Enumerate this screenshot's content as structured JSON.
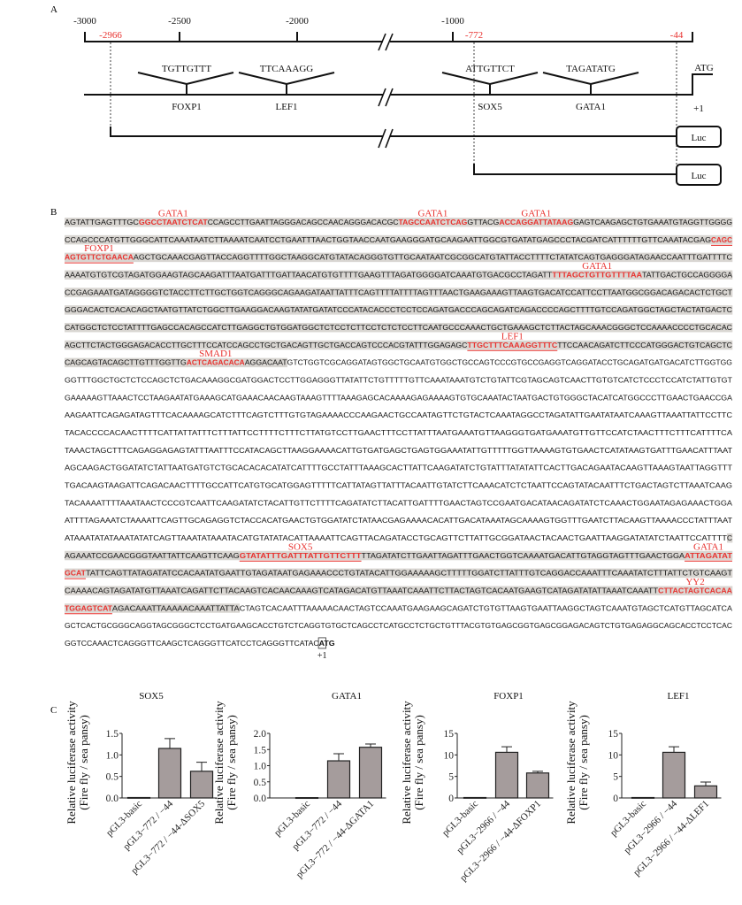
{
  "panel_labels": {
    "a": "A",
    "b": "B",
    "c": "C"
  },
  "panel_a": {
    "axis_ticks": [
      "-3000",
      "-2500",
      "-2000",
      "-1000"
    ],
    "red_positions": [
      "-2966",
      "-772",
      "-44"
    ],
    "sites": [
      {
        "motif": "TGTTGTTT",
        "factor": "FOXP1"
      },
      {
        "motif": "TTCAAAGG",
        "factor": "LEF1"
      },
      {
        "motif": "ATTGTTCT",
        "factor": "SOX5"
      },
      {
        "motif": "TAGATATG",
        "factor": "GATA1"
      }
    ],
    "start_codon": "ATG",
    "tss": "+1",
    "reporter": "Luc",
    "red_color": "#e8322f"
  },
  "panel_b": {
    "highlight_color": "#d9d6d2",
    "motif_color": "#e8322f",
    "tss": "+1",
    "lines": [
      {
        "bg": 1,
        "s": [
          {
            "t": "AGTATTGAGTTTGC"
          },
          {
            "t": "GGCCTAATCTCAT",
            "r": 1,
            "label": "GATA1"
          },
          {
            "t": "CCAGCCTTGAATTAGGGACAGCCAACAGGGACACGC"
          },
          {
            "t": "TAGCCAATCTCAG",
            "r": 1,
            "label": "GATA1"
          },
          {
            "t": "GTTACG"
          },
          {
            "t": "ACCAGGATTATAAG",
            "r": 1,
            "label": "GATA1"
          },
          {
            "t": "GAGTCAAGAGCTGTGAAATGTAGGTTGGGG"
          }
        ]
      },
      {
        "bg": 1,
        "s": [
          {
            "t": "CCAGCCCATGTTGGGCATTCAAATAATCTTAAAATCAATCCTGAATTTAACTGGTAACCAATGAAGGGATGCAAGAATTGGCGTGATATGAGCCCTACGATCATTTTTTGTTCAAATACGAG"
          },
          {
            "t": "CAGC",
            "r": 1,
            "u": 1
          }
        ]
      },
      {
        "bg": 1,
        "s": [
          {
            "t": "AGTGTTCTGAACA",
            "r": 1,
            "u": 1,
            "label": "FOXP1"
          },
          {
            "t": "AGCTGCAAACGAGTTACCAGGTTTTGGCTAAGGCATGTATACAGGGTGTTGCAATAATCGCGGCATGTATTACCTTTTCTATATCAGTGAGGGATAGAACCAATTTGATTTTC"
          }
        ]
      },
      {
        "bg": 1,
        "s": [
          {
            "t": "AAAATGTGTCGTAGATGGAAGTAGCAAGATTTAATGATTTGATTAACATGTGTTTTGAAGTTTAGATGGGGATCAAATGTGACGCCTAGATT"
          },
          {
            "t": "TTTAGCTGTTGTTTTAA",
            "r": 1,
            "label": "GATA1"
          },
          {
            "t": "TATTGACTGCCAGGGGA"
          }
        ]
      },
      {
        "bg": 1,
        "s": [
          {
            "t": "CCGAGAAATGATAGGGGTCTACCTTCTTGCTGGTCAGGGCAGAAGATAATTATTTCAGTTTTATTTTAGTTTAACTGAAGAAAGTTAAGTGACATCCATTCCTTAATGGCGGACAGACACTCTGCT"
          }
        ]
      },
      {
        "bg": 1,
        "s": [
          {
            "t": "GGGACACTCACACAGCTAATGTTATCTGGCTTGAAGGACAAGTATATGATATCCCATACACCCTCCTCCAGATGACCCAGCAGATCAGACCCCAGCTTTTGTCCAGATGGCTAGCTACTATGACTC"
          }
        ]
      },
      {
        "bg": 1,
        "s": [
          {
            "t": "CATGGCTCTCCTATTTTGAGCCACAGCCATCTTGAGGCTGTGGATGGCTCTCCTCTTCCTCTCTCCTTCAATGCCCAAACTGCTGAAAGCTCTTACTAGCAAACGGGCTCCAAAACCCCTGCACAC"
          }
        ]
      },
      {
        "bg": 1,
        "s": [
          {
            "t": "AGCTTCTACTGGGAGACACCTTGCTTTCCATCCAGCCTGCTGACAGTTGCTGACCAGTCCCACGTATTTGGAGAGC"
          },
          {
            "t": "TTGCTTTCAAAGGTTTC",
            "r": 1,
            "u": 1,
            "label": "LEF1"
          },
          {
            "t": "TTCCAACAGATCTTCCCATGGGACTGTCAGCTC"
          }
        ]
      },
      {
        "s": [
          {
            "t": "CAGCAGTACAGCTTGTTTGGTTG",
            "bg": 1
          },
          {
            "t": "ACTCAGACACA",
            "r": 1,
            "bg": 1,
            "label": "SMAD1"
          },
          {
            "t": "AGGACAAT",
            "bg": 1
          },
          {
            "t": "GTCTGGTCGCAGGATAGTGGCTGCAATGTGGCTGCCAGTCCCGTGCCGAGGTCAGGATACCTGCAGATGATGACATCTTGGTGG"
          }
        ]
      },
      {
        "s": [
          {
            "t": "GGTTTGGCTGCTCTCCAGCTCTGACAAAGGCGATGGACTCCTTGGAGGGTTATATTCTGTTTTTGTTCAAATAAATGTCTGTATTCGTAGCAGTCAACTTGTGTCATCTCCCTCCATCTATTGTGT"
          }
        ]
      },
      {
        "s": [
          {
            "t": "GAAAAAGTTAAACTCCTAAGAATATGAAAGCATGAAACAACAAGTAAAGTTTTAAAGAGCACAAAAGAGAAAAGTGTGCAAATACTAATGACTGTGGGCTACATCATGGCCCTTGAACTGAACCGA"
          }
        ]
      },
      {
        "s": [
          {
            "t": "AAGAATTCAGAGATAGTTTCACAAAAGCATCTTTCAGTCTTTGTGTAGAAAACCCAAGAACTGCCAATAGTTCTGTACTCAAATAGGCCTAGATATTGAATATAATCAAAGTTAAATTATTCCTTC"
          }
        ]
      },
      {
        "s": [
          {
            "t": "TACACCCCACAACTTTTCATTATTATTTCTTTATTCCTTTTCTTTCTTATGTCCTTGAACTTTCCTTATTTAATGAAATGTTAAGGGTGATGAAATGTTGTTCCATCTAACTTTCTTTCATTTTCA"
          }
        ]
      },
      {
        "s": [
          {
            "t": "TAAACTAGCTTTCAGAGGAGAGTATTTAATTTCCATACAGCTTAAGGAAAACATTGTGATGAGCTGAGTGGAAATATTGTTTTTGGTTAAAAGTGTGAACTCATATAAGTGATTTGAACATTTAAT"
          }
        ]
      },
      {
        "s": [
          {
            "t": "AGCAAGACTGGATATCTATTAATGATGTCTGCACACACATATCATTTTGCCTATTTAAAGCACTTATTCAAGATATCTGTATTTATATATTCACTTGACAGAATACAAGTTAAAGTAATTAGGTTT"
          }
        ]
      },
      {
        "s": [
          {
            "t": "TGACAAGTAAGATTCAGACAACTTTTGCCATTCATGTGCATGGAGTTTTTCATTATAGTTATTTACAATTGTATCTTCAAACATCTCTAATTCCAGTATACAATTTCTGACTAGTCTTAAATCAAG"
          }
        ]
      },
      {
        "s": [
          {
            "t": "TACAAAATTTTAAATAACTCCCGTCAATTCAAGATATCTACATTGTTCTTTTCAGATATCTTACATTGATTTTGAACTAGTCCGAATGACATAACAGATATCTCAAACTGGAATAGAGAAACTGGA"
          }
        ]
      },
      {
        "s": [
          {
            "t": "ATTTTAGAAATCTAAAATTCAGTTGCAGAGGTCTACCACATGAACTGTGGATATCTATAACGAGAAAACACATTGACATAAATAGCAAAAGTGGTTTGAATCTTACAAGTTAAAACCCTATTTAAT"
          }
        ]
      },
      {
        "s": [
          {
            "t": "ATAAATATATAAATATATCAGTTAAATATAAATACATGTATATACATTAAAATTCAGTTACAGATACCTGCAGTTCTTATTGCGGATAACTACAACTGAATTAAGGATATATCTAATTCCATTTT"
          },
          {
            "t": "C",
            "bg": 1
          }
        ]
      },
      {
        "bg": 1,
        "s": [
          {
            "t": "AGAAATCCGAACGGGTAATTATTCAAGTTCAAG"
          },
          {
            "t": "GTATATTTGATTTATTGTTCTTT",
            "r": 1,
            "u": 1,
            "label": "SOX5"
          },
          {
            "t": "TTAGATATCTTGAATTAGATTTGAACTGGTCAAAATGACATTGTAGGTAGTTTGAACTGGA"
          },
          {
            "t": "ATTAGATAT",
            "r": 1,
            "u": 1,
            "label": "GATA1"
          }
        ]
      },
      {
        "bg": 1,
        "s": [
          {
            "t": "GCAT",
            "r": 1,
            "u": 1
          },
          {
            "t": "TATTCAGTTATAGATATCCACAATATGAATTGTAGATAATGAGAAACCCTGTATACATTGGAAAAAGCTTTTTGGATCTTATTTGTCAGGACCAAATTTCAAATATCTTTATTCTGTCAAGT"
          }
        ]
      },
      {
        "bg": 1,
        "s": [
          {
            "t": "CAAAACAGTAGATATGTTAAATCAGATTCTTACAAGTCACAACAAAGTCATAGACATGTTAAATCAAATTCTTACTAGTCACAATGAAGTCATAGATATATTAAATCAAATT"
          },
          {
            "t": "CTTACTAGTCACAA",
            "r": 1,
            "label": "YY2"
          }
        ]
      },
      {
        "s": [
          {
            "t": "TGGAGTCAT",
            "r": 1,
            "u": 1,
            "bg": 1
          },
          {
            "t": "AGACAAATTAAAAACAAATTATTA",
            "bg": 1
          },
          {
            "t": "CTAGTCACAATTTAAAAACAACTAGTCCAAATGAAGAAGCAGATCTGTGTTAAGTGAATTAAGGCTAGTCAAATGTAGCTCATGTTAGCATCA"
          }
        ]
      },
      {
        "s": [
          {
            "t": "GCTCACTGCGGGCAGGTAGCGGGCTCCTGATGAAGCACCTGTCTCAGGTGTGCTCAGCCTCATGCCTCTGCTGTTTACGTGTGAGCGGTGAGCGGAGACAGTCTGTGAGAGGCAGCACCTCCTCAC"
          }
        ]
      },
      {
        "last": 1,
        "s": [
          {
            "t": "GGTCCAAACTCAGGGTTCAAGCTCAGGGTTCATCCTCAGGGTTCATAC"
          },
          {
            "t": "ATG",
            "b": 1
          }
        ]
      }
    ]
  },
  "chart_data": [
    {
      "type": "bar",
      "title": "SOX5",
      "ylabel": [
        "Relative luciferase activity",
        "(Fire fly / sea pansy)"
      ],
      "categories": [
        "pGL3-basic",
        "pGL3−772 / −44",
        "pGL3−772 / −44-ΔSOX5"
      ],
      "values": [
        0.01,
        1.15,
        0.62
      ],
      "error": [
        0,
        0.23,
        0.21
      ],
      "ylim": [
        0,
        1.5
      ],
      "yticks": [
        "0.0",
        "0.5",
        "1.0",
        "1.5"
      ],
      "bar_color": "#a59c9c"
    },
    {
      "type": "bar",
      "title": "GATA1",
      "ylabel": [
        "Relative luciferase activity",
        "(Fire fly / sea pansy)"
      ],
      "categories": [
        "pGL3-basic",
        "pGL3−772 / −44",
        "pGL3−772 / −44-ΔGATA1"
      ],
      "values": [
        0.01,
        1.15,
        1.57
      ],
      "error": [
        0,
        0.22,
        0.1
      ],
      "ylim": [
        0,
        2.0
      ],
      "yticks": [
        "0.0",
        "0.5",
        "1.0",
        "1.5",
        "2.0"
      ],
      "bar_color": "#a59c9c"
    },
    {
      "type": "bar",
      "title": "FOXP1",
      "ylabel": [
        "Relative luciferase activity",
        "(Fire fly / sea pansy)"
      ],
      "categories": [
        "pGL3-basic",
        "pGL3−2966 / −44",
        "pGL3−2966 / −44-ΔFOXP1"
      ],
      "values": [
        0.1,
        10.6,
        5.8
      ],
      "error": [
        0,
        1.3,
        0.4
      ],
      "ylim": [
        0,
        15
      ],
      "yticks": [
        "0",
        "5",
        "10",
        "15"
      ],
      "bar_color": "#a59c9c"
    },
    {
      "type": "bar",
      "title": "LEF1",
      "ylabel": [
        "Relative luciferase activity",
        "(Fire fly / sea pansy)"
      ],
      "categories": [
        "pGL3-basic",
        "pGL3−2966 / −44",
        "pGL3−2966 / −44-ΔLEF1"
      ],
      "values": [
        0.1,
        10.6,
        2.8
      ],
      "error": [
        0,
        1.3,
        0.9
      ],
      "ylim": [
        0,
        15
      ],
      "yticks": [
        "0",
        "5",
        "10",
        "15"
      ],
      "bar_color": "#a59c9c"
    }
  ]
}
